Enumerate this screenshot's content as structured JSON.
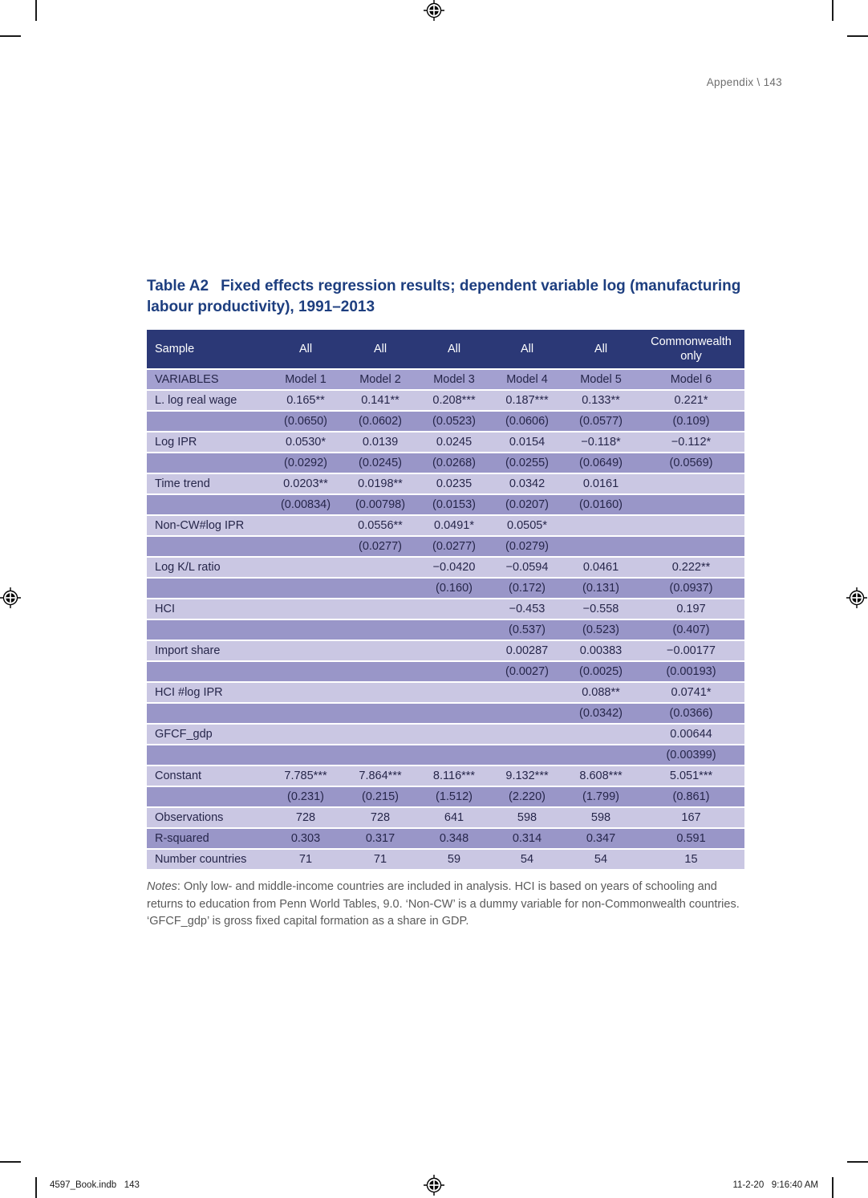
{
  "page": {
    "running_header": "Appendix \\ 143",
    "footer_left": "4597_Book.indb   143",
    "footer_right": "11-2-20   9:16:40 AM"
  },
  "title": {
    "label": "Table A2",
    "text": "Fixed effects regression results; dependent variable log (manufacturing labour productivity), 1991–2013"
  },
  "colors": {
    "header_bg": "#2b3876",
    "subheader_bg": "#a3a0d0",
    "row_light_bg": "#cac7e3",
    "row_dark_bg": "#9996c8",
    "title_color": "#1d3e7f"
  },
  "table": {
    "header": {
      "label": "Sample",
      "cells": [
        "All",
        "All",
        "All",
        "All",
        "All",
        "Commonwealth only"
      ]
    },
    "subheader": {
      "label": "VARIABLES",
      "cells": [
        "Model 1",
        "Model 2",
        "Model 3",
        "Model 4",
        "Model 5",
        "Model 6"
      ]
    },
    "rows": [
      {
        "shade": "light",
        "label": "L. log real wage",
        "cells": [
          "0.165**",
          "0.141**",
          "0.208***",
          "0.187***",
          "0.133**",
          "0.221*"
        ]
      },
      {
        "shade": "dark",
        "label": "",
        "cells": [
          "(0.0650)",
          "(0.0602)",
          "(0.0523)",
          "(0.0606)",
          "(0.0577)",
          "(0.109)"
        ]
      },
      {
        "shade": "light",
        "label": "Log IPR",
        "cells": [
          "0.0530*",
          "0.0139",
          "0.0245",
          "0.0154",
          "−0.118*",
          "−0.112*"
        ]
      },
      {
        "shade": "dark",
        "label": "",
        "cells": [
          "(0.0292)",
          "(0.0245)",
          "(0.0268)",
          "(0.0255)",
          "(0.0649)",
          "(0.0569)"
        ]
      },
      {
        "shade": "light",
        "label": "Time trend",
        "cells": [
          "0.0203**",
          "0.0198**",
          "0.0235",
          "0.0342",
          "0.0161",
          ""
        ]
      },
      {
        "shade": "dark",
        "label": "",
        "cells": [
          "(0.00834)",
          "(0.00798)",
          "(0.0153)",
          "(0.0207)",
          "(0.0160)",
          ""
        ]
      },
      {
        "shade": "light",
        "label": "Non-CW#log IPR",
        "cells": [
          "",
          "0.0556**",
          "0.0491*",
          "0.0505*",
          "",
          ""
        ]
      },
      {
        "shade": "dark",
        "label": "",
        "cells": [
          "",
          "(0.0277)",
          "(0.0277)",
          "(0.0279)",
          "",
          ""
        ]
      },
      {
        "shade": "light",
        "label": "Log K/L ratio",
        "cells": [
          "",
          "",
          "−0.0420",
          "−0.0594",
          "0.0461",
          "0.222**"
        ]
      },
      {
        "shade": "dark",
        "label": "",
        "cells": [
          "",
          "",
          "(0.160)",
          "(0.172)",
          "(0.131)",
          "(0.0937)"
        ]
      },
      {
        "shade": "light",
        "label": "HCI",
        "cells": [
          "",
          "",
          "",
          "−0.453",
          "−0.558",
          "0.197"
        ]
      },
      {
        "shade": "dark",
        "label": "",
        "cells": [
          "",
          "",
          "",
          "(0.537)",
          "(0.523)",
          "(0.407)"
        ]
      },
      {
        "shade": "light",
        "label": "Import share",
        "cells": [
          "",
          "",
          "",
          "0.00287",
          "0.00383",
          "−0.00177"
        ]
      },
      {
        "shade": "dark",
        "label": "",
        "cells": [
          "",
          "",
          "",
          "(0.0027)",
          "(0.0025)",
          "(0.00193)"
        ]
      },
      {
        "shade": "light",
        "label": "HCI #log IPR",
        "cells": [
          "",
          "",
          "",
          "",
          "0.088**",
          "0.0741*"
        ]
      },
      {
        "shade": "dark",
        "label": "",
        "cells": [
          "",
          "",
          "",
          "",
          "(0.0342)",
          "(0.0366)"
        ]
      },
      {
        "shade": "light",
        "label": "GFCF_gdp",
        "cells": [
          "",
          "",
          "",
          "",
          "",
          "0.00644"
        ]
      },
      {
        "shade": "dark",
        "label": "",
        "cells": [
          "",
          "",
          "",
          "",
          "",
          "(0.00399)"
        ]
      },
      {
        "shade": "light",
        "label": "Constant",
        "cells": [
          "7.785***",
          "7.864***",
          "8.116***",
          "9.132***",
          "8.608***",
          "5.051***"
        ]
      },
      {
        "shade": "dark",
        "label": "",
        "cells": [
          "(0.231)",
          "(0.215)",
          "(1.512)",
          "(2.220)",
          "(1.799)",
          "(0.861)"
        ]
      },
      {
        "shade": "light",
        "label": "Observations",
        "cells": [
          "728",
          "728",
          "641",
          "598",
          "598",
          "167"
        ]
      },
      {
        "shade": "dark",
        "label": "R-squared",
        "cells": [
          "0.303",
          "0.317",
          "0.348",
          "0.314",
          "0.347",
          "0.591"
        ]
      },
      {
        "shade": "light",
        "label": "Number countries",
        "cells": [
          "71",
          "71",
          "59",
          "54",
          "54",
          "15"
        ]
      }
    ]
  },
  "notes": {
    "label": "Notes",
    "text": ": Only low- and middle-income countries are included in analysis. HCI is based on years of schooling and returns to education from Penn World Tables, 9.0. ‘Non-CW’ is a dummy variable for non-Commonwealth countries. ‘GFCF_gdp’ is gross fixed capital formation as a share in GDP."
  }
}
